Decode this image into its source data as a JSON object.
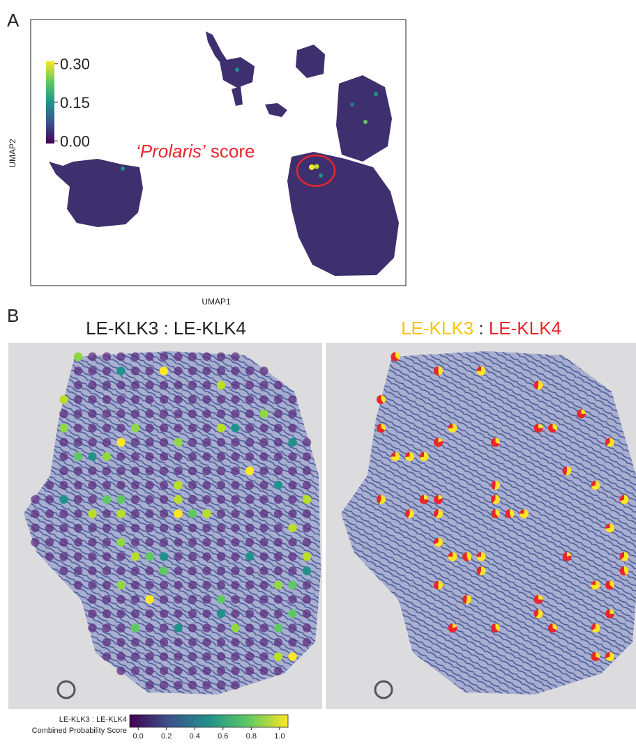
{
  "panel_a": {
    "label": "A",
    "x_label": "UMAP1",
    "y_label": "UMAP2",
    "annotation_italic": "‘Prolaris’",
    "annotation_rest": "score",
    "colorbar": {
      "lim": [
        -0.01,
        0.31
      ],
      "ticks": [
        {
          "value": 0.3,
          "label": "0.30"
        },
        {
          "value": 0.15,
          "label": "0.15"
        },
        {
          "value": 0,
          "label": "0.00"
        }
      ]
    }
  },
  "panel_b": {
    "label": "B",
    "left_title": "LE-KLK3 : LE-KLK4",
    "right_title": {
      "first": "LE-KLK3",
      "separator": ":",
      "second": "LE-KLK4"
    },
    "colorbar": {
      "label_lines": [
        "LE-KLK3 : LE-KLK4",
        "Combined Probability Score"
      ],
      "lim": [
        -0.06,
        1.06
      ],
      "ticks": [
        {
          "value": 0,
          "label": "0.0"
        },
        0.2,
        0.4,
        0.6,
        0.8,
        {
          "value": 1,
          "label": "1.0"
        }
      ]
    }
  }
}
